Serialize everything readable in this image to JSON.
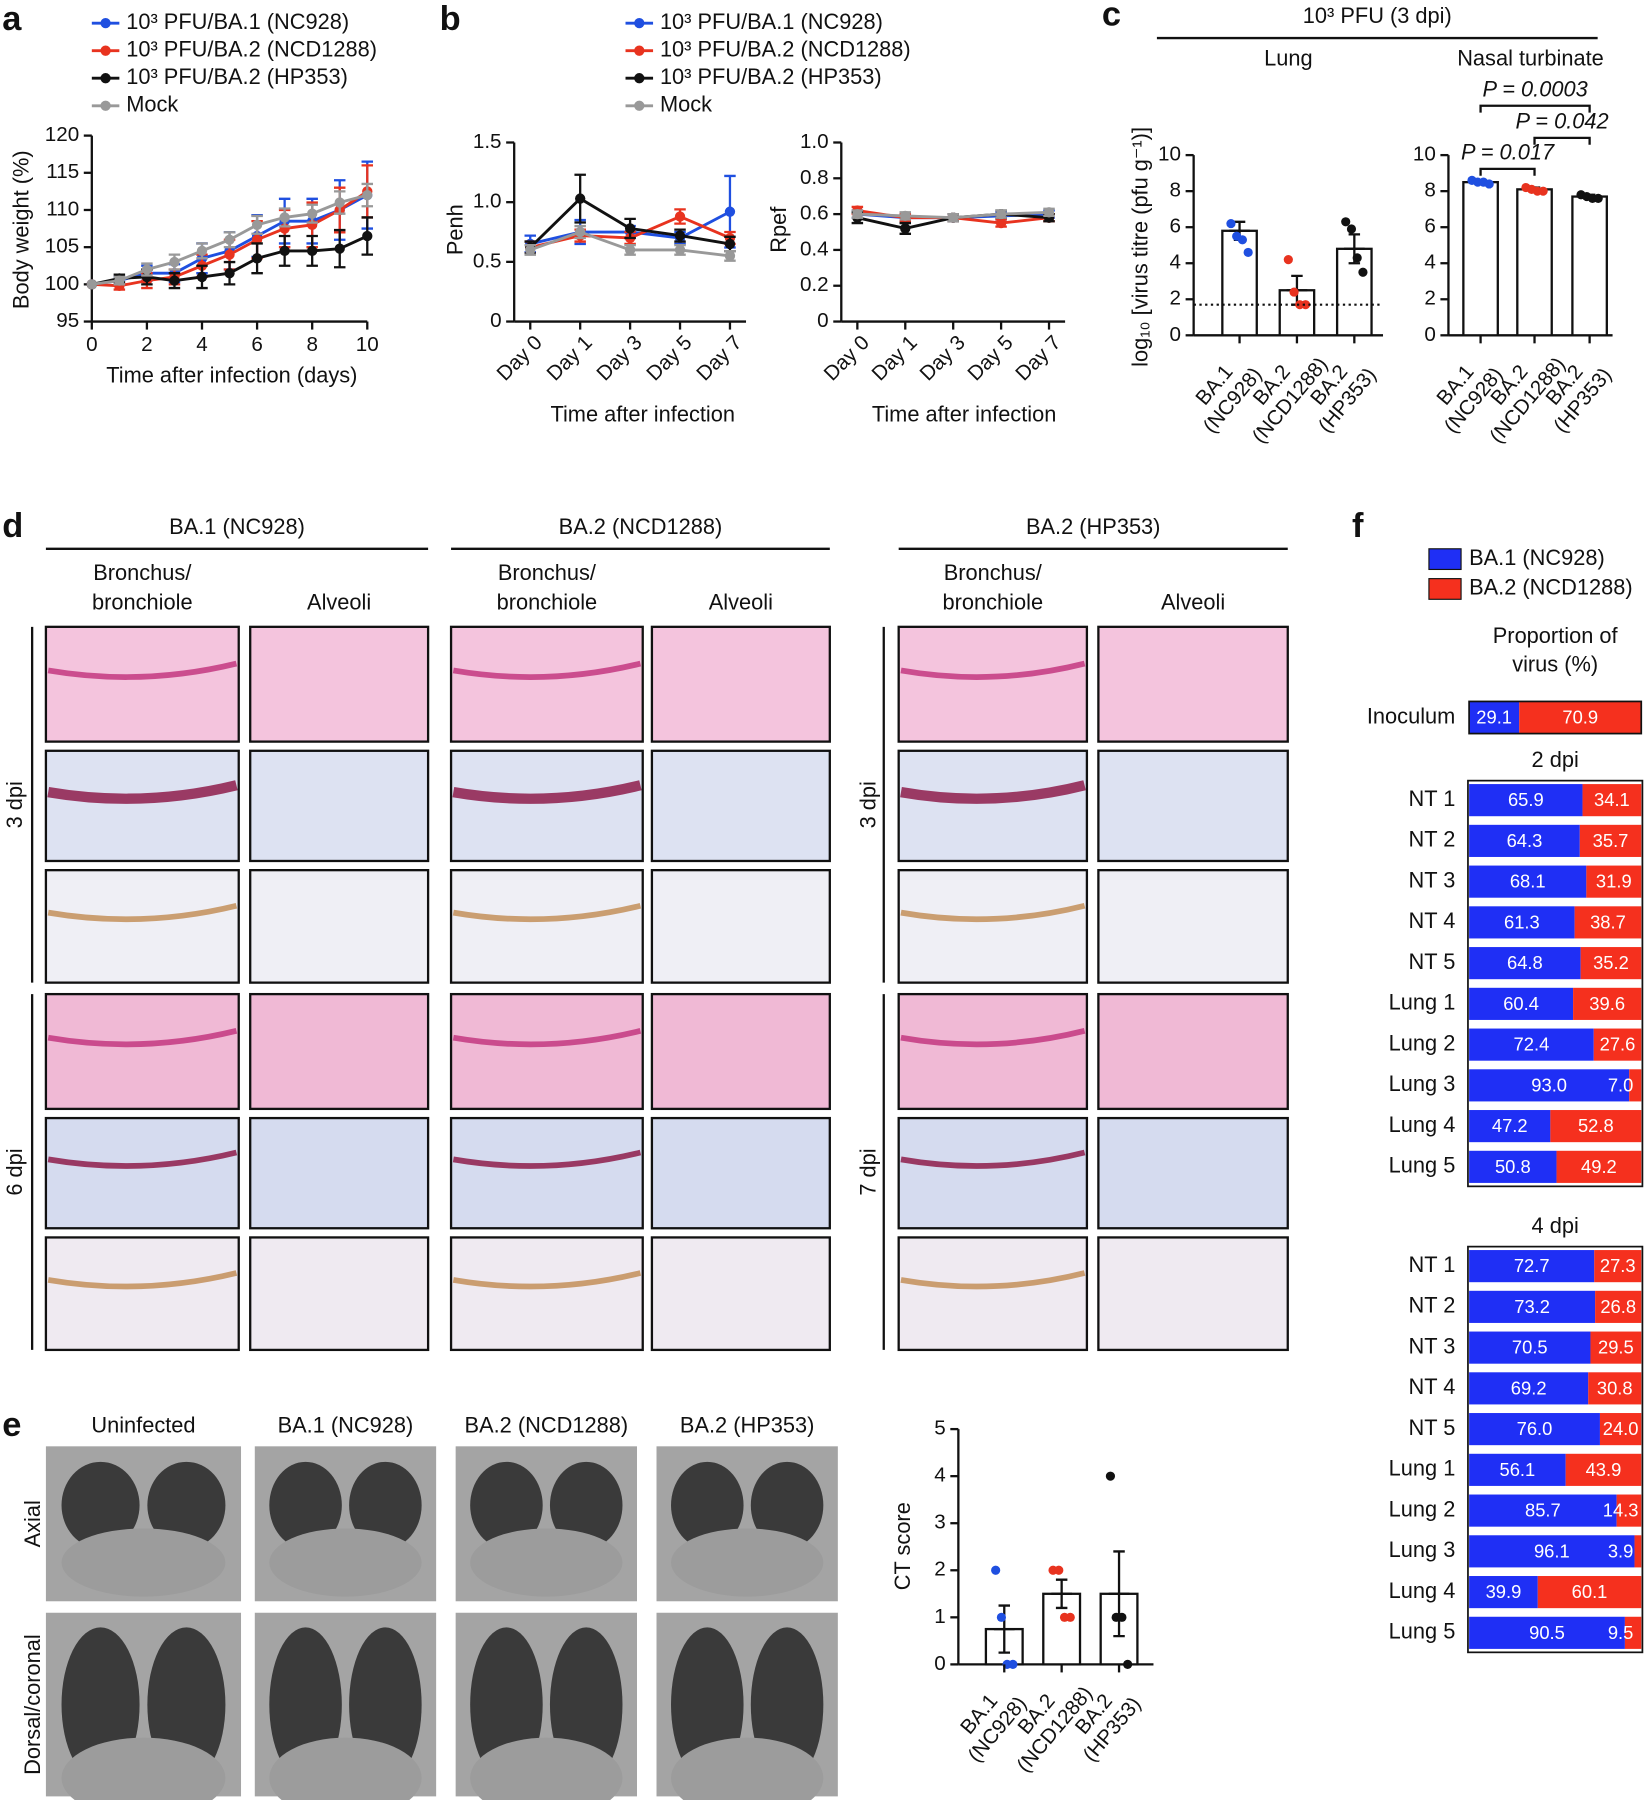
{
  "panel_letters": [
    "a",
    "b",
    "c",
    "d",
    "e",
    "f"
  ],
  "panel_d": {
    "groups": [
      "BA.1 (NC928)",
      "BA.2 (NCD1288)",
      "BA.2 (HP353)"
    ],
    "columns": [
      [
        "Bronchus/",
        "bronchiole"
      ],
      [
        "Alveoli"
      ],
      [
        "Bronchus/",
        "bronchiole"
      ],
      [
        "Alveoli"
      ],
      [
        "Bronchus/",
        "bronchiole"
      ],
      [
        "Alveoli"
      ]
    ],
    "rows_left": [
      "3 dpi",
      "6 dpi"
    ],
    "rows_right": [
      "3 dpi",
      "7 dpi"
    ]
  },
  "panel_e": {
    "columns": [
      "Uninfected",
      "BA.1 (NC928)",
      "BA.2 (NCD1288)",
      "BA.2 (HP353)"
    ],
    "rows": [
      "Axial",
      "Dorsal/coronal"
    ]
  },
  "chart_data": [
    {
      "type": "line",
      "xlabel": "Time after infection (days)",
      "ylabel": "Body weight (%)",
      "x": [
        0,
        1,
        2,
        3,
        4,
        5,
        6,
        7,
        8,
        9,
        10
      ],
      "xlim": [
        0,
        10
      ],
      "xticks": [
        0,
        2,
        4,
        6,
        8,
        10
      ],
      "ylim": [
        95,
        120
      ],
      "yticks": [
        95,
        100,
        105,
        110,
        115,
        120
      ],
      "series": [
        {
          "name": "10³ PFU/BA.1 (NC928)",
          "color": "#1f4fe0",
          "values": [
            100,
            100.5,
            101.5,
            101.5,
            103.5,
            104.5,
            106.5,
            108.5,
            108.5,
            110,
            112
          ],
          "errors": [
            0,
            0.5,
            1,
            1.2,
            2,
            2.5,
            2.8,
            3,
            3,
            4,
            4.5
          ]
        },
        {
          "name": "10³ PFU/BA.2 (NCD1288)",
          "color": "#e8331f",
          "values": [
            100,
            99.8,
            100.5,
            101,
            102.5,
            104,
            106,
            107.5,
            108,
            110,
            112.5
          ],
          "errors": [
            0,
            0.5,
            1,
            1,
            1.5,
            2,
            2.5,
            2.5,
            3,
            3,
            3.5
          ]
        },
        {
          "name": "10³ PFU/BA.2 (HP353)",
          "color": "#111111",
          "values": [
            100,
            100.8,
            101,
            100.5,
            101,
            101.5,
            103.5,
            104.5,
            104.5,
            104.8,
            106.5
          ],
          "errors": [
            0,
            0.5,
            1,
            1,
            1.5,
            1.5,
            2,
            2,
            2,
            2.5,
            2.5
          ]
        },
        {
          "name": "Mock",
          "color": "#999999",
          "values": [
            100,
            100.5,
            102,
            103,
            104.5,
            106,
            108,
            109,
            109.5,
            111,
            112
          ],
          "errors": [
            0,
            0.5,
            0.8,
            1,
            1,
            1,
            1.2,
            1.2,
            1.2,
            1.5,
            1.5
          ]
        }
      ]
    },
    {
      "type": "line",
      "xlabel": "Time after infection",
      "ylabel": "Penh",
      "categories": [
        "Day 0",
        "Day 1",
        "Day 3",
        "Day 5",
        "Day 7"
      ],
      "ylim": [
        0,
        1.5
      ],
      "yticks": [
        0,
        0.5,
        {
          "value": 1,
          "label": "1.0"
        },
        1.5
      ],
      "series": [
        {
          "name": "10³ PFU/BA.1 (NC928)",
          "color": "#1f4fe0",
          "values": [
            0.65,
            0.75,
            0.75,
            0.7,
            0.92
          ],
          "errors": [
            0.07,
            0.1,
            0.05,
            0.05,
            0.3
          ]
        },
        {
          "name": "10³ PFU/BA.2 (NCD1288)",
          "color": "#e8331f",
          "values": [
            0.62,
            0.72,
            0.7,
            0.88,
            0.7
          ],
          "errors": [
            0.05,
            0.05,
            0.05,
            0.06,
            0.05
          ]
        },
        {
          "name": "10³ PFU/BA.2 (HP353)",
          "color": "#111111",
          "values": [
            0.62,
            1.03,
            0.78,
            0.72,
            0.65
          ],
          "errors": [
            0.05,
            0.2,
            0.08,
            0.05,
            0.06
          ]
        },
        {
          "name": "Mock",
          "color": "#999999",
          "values": [
            0.6,
            0.75,
            0.6,
            0.6,
            0.55
          ],
          "errors": [
            0.04,
            0.05,
            0.04,
            0.04,
            0.04
          ]
        }
      ]
    },
    {
      "type": "line",
      "xlabel": "Time after infection",
      "ylabel": "Rpef",
      "categories": [
        "Day 0",
        "Day 1",
        "Day 3",
        "Day 5",
        "Day 7"
      ],
      "ylim": [
        0,
        1
      ],
      "yticks": [
        0,
        0.2,
        0.4,
        0.6,
        0.8,
        {
          "value": 1,
          "label": "1.0"
        }
      ],
      "series": [
        {
          "color": "#1f4fe0",
          "values": [
            0.6,
            0.58,
            0.58,
            0.59,
            0.6
          ],
          "errors": [
            0.02,
            0.02,
            0.02,
            0.02,
            0.02
          ]
        },
        {
          "color": "#e8331f",
          "values": [
            0.62,
            0.58,
            0.58,
            0.55,
            0.58
          ],
          "errors": [
            0.02,
            0.02,
            0.02,
            0.02,
            0.02
          ]
        },
        {
          "color": "#111111",
          "values": [
            0.58,
            0.52,
            0.58,
            0.6,
            0.58
          ],
          "errors": [
            0.03,
            0.03,
            0.02,
            0.02,
            0.02
          ]
        },
        {
          "color": "#999999",
          "values": [
            0.6,
            0.59,
            0.58,
            0.6,
            0.61
          ],
          "errors": [
            0.02,
            0.02,
            0.02,
            0.02,
            0.02
          ]
        }
      ]
    },
    {
      "type": "bar",
      "title": "10³ PFU (3 dpi)",
      "subtitle": "Lung",
      "ylabel": "log₁₀ [virus titre (pfu g⁻¹)]",
      "categories": [
        [
          "BA.1",
          "(NC928)"
        ],
        [
          "BA.2",
          "(NCD1288)"
        ],
        [
          "BA.2",
          "(HP353)"
        ]
      ],
      "values": [
        5.8,
        2.5,
        4.8
      ],
      "errors": [
        0.5,
        0.8,
        0.8
      ],
      "points": [
        [
          6.2,
          5.5,
          5.3,
          4.6
        ],
        [
          4.2,
          2.4,
          1.7,
          1.7
        ],
        [
          6.3,
          5.9,
          4.3,
          3.5
        ]
      ],
      "point_colors": [
        "#1f4fe0",
        "#e8331f",
        "#111111"
      ],
      "reference_line": 1.7,
      "ylim": [
        0,
        10
      ],
      "yticks": [
        0,
        2,
        4,
        6,
        8,
        10
      ]
    },
    {
      "type": "bar",
      "subtitle": "Nasal turbinate",
      "categories": [
        [
          "BA.1",
          "(NC928)"
        ],
        [
          "BA.2",
          "(NCD1288)"
        ],
        [
          "BA.2",
          "(HP353)"
        ]
      ],
      "values": [
        8.5,
        8.1,
        7.7
      ],
      "errors": [
        0.1,
        0.1,
        0.1
      ],
      "points": [
        [
          8.6,
          8.5,
          8.5,
          8.4
        ],
        [
          8.2,
          8.1,
          8.0,
          8.0
        ],
        [
          7.8,
          7.7,
          7.6,
          7.6
        ]
      ],
      "point_colors": [
        "#1f4fe0",
        "#e8331f",
        "#111111"
      ],
      "annotations": [
        {
          "text": "P = 0.0003",
          "from": 0,
          "to": 2
        },
        {
          "text": "P = 0.042",
          "from": 1,
          "to": 2
        },
        {
          "text": "P = 0.017",
          "from": 0,
          "to": 1
        }
      ],
      "ylim": [
        0,
        10
      ],
      "yticks": [
        0,
        2,
        4,
        6,
        8,
        10
      ]
    },
    {
      "type": "bar",
      "ylabel": "CT score",
      "categories": [
        [
          "BA.1",
          "(NC928)"
        ],
        [
          "BA.2",
          "(NCD1288)"
        ],
        [
          "BA.2",
          "(HP353)"
        ]
      ],
      "values": [
        0.75,
        1.5,
        1.5
      ],
      "errors": [
        0.5,
        0.3,
        0.9
      ],
      "points": [
        [
          2,
          1,
          0,
          0
        ],
        [
          2,
          2,
          1,
          1
        ],
        [
          4,
          1,
          1,
          0
        ]
      ],
      "point_colors": [
        "#1f4fe0",
        "#e8331f",
        "#111111"
      ],
      "ylim": [
        0,
        5
      ],
      "yticks": [
        0,
        1,
        2,
        3,
        4,
        5
      ]
    },
    {
      "type": "stacked_barh",
      "title": [
        "Proportion of",
        "virus (%)"
      ],
      "categories": [
        "Inoculum"
      ],
      "xlim": [
        0,
        100
      ],
      "series": [
        {
          "name": "BA.1 (NC928)",
          "color": "#1f2ff5",
          "values": [
            29.1
          ],
          "value_labels": [
            "29.1"
          ]
        },
        {
          "name": "BA.2 (NCD1288)",
          "color": "#f5301e",
          "values": [
            70.9
          ],
          "value_labels": [
            "70.9"
          ]
        }
      ]
    },
    {
      "type": "stacked_barh",
      "subtitle": "2 dpi",
      "categories": [
        "NT 1",
        "NT 2",
        "NT 3",
        "NT 4",
        "NT 5",
        "Lung 1",
        "Lung 2",
        "Lung 3",
        "Lung 4",
        "Lung 5"
      ],
      "xlim": [
        0,
        100
      ],
      "series": [
        {
          "color": "#1f2ff5",
          "values": [
            65.9,
            64.3,
            68.1,
            61.3,
            64.8,
            60.4,
            72.4,
            93.0,
            47.2,
            50.8
          ],
          "value_labels": [
            "65.9",
            "64.3",
            "68.1",
            "61.3",
            "64.8",
            "60.4",
            "72.4",
            "93.0",
            "47.2",
            "50.8"
          ]
        },
        {
          "color": "#f5301e",
          "values": [
            34.1,
            35.7,
            31.9,
            38.7,
            35.2,
            39.6,
            27.6,
            7.0,
            52.8,
            49.2
          ],
          "value_labels": [
            "34.1",
            "35.7",
            "31.9",
            "38.7",
            "35.2",
            "39.6",
            "27.6",
            "7.0",
            "52.8",
            "49.2"
          ]
        }
      ]
    },
    {
      "type": "stacked_barh",
      "subtitle": "4 dpi",
      "categories": [
        "NT 1",
        "NT 2",
        "NT 3",
        "NT 4",
        "NT 5",
        "Lung 1",
        "Lung 2",
        "Lung 3",
        "Lung 4",
        "Lung 5"
      ],
      "xlim": [
        0,
        100
      ],
      "series": [
        {
          "color": "#1f2ff5",
          "values": [
            72.7,
            73.2,
            70.5,
            69.2,
            76.0,
            56.1,
            85.7,
            96.1,
            39.9,
            90.5
          ],
          "value_labels": [
            "72.7",
            "73.2",
            "70.5",
            "69.2",
            "76.0",
            "56.1",
            "85.7",
            "96.1",
            "39.9",
            "90.5"
          ]
        },
        {
          "color": "#f5301e",
          "values": [
            27.3,
            26.8,
            29.5,
            30.8,
            24.0,
            43.9,
            14.3,
            3.9,
            60.1,
            9.5
          ],
          "value_labels": [
            "27.3",
            "26.8",
            "29.5",
            "30.8",
            "24.0",
            "43.9",
            "14.3",
            "3.9",
            "60.1",
            "9.5"
          ]
        }
      ]
    }
  ]
}
